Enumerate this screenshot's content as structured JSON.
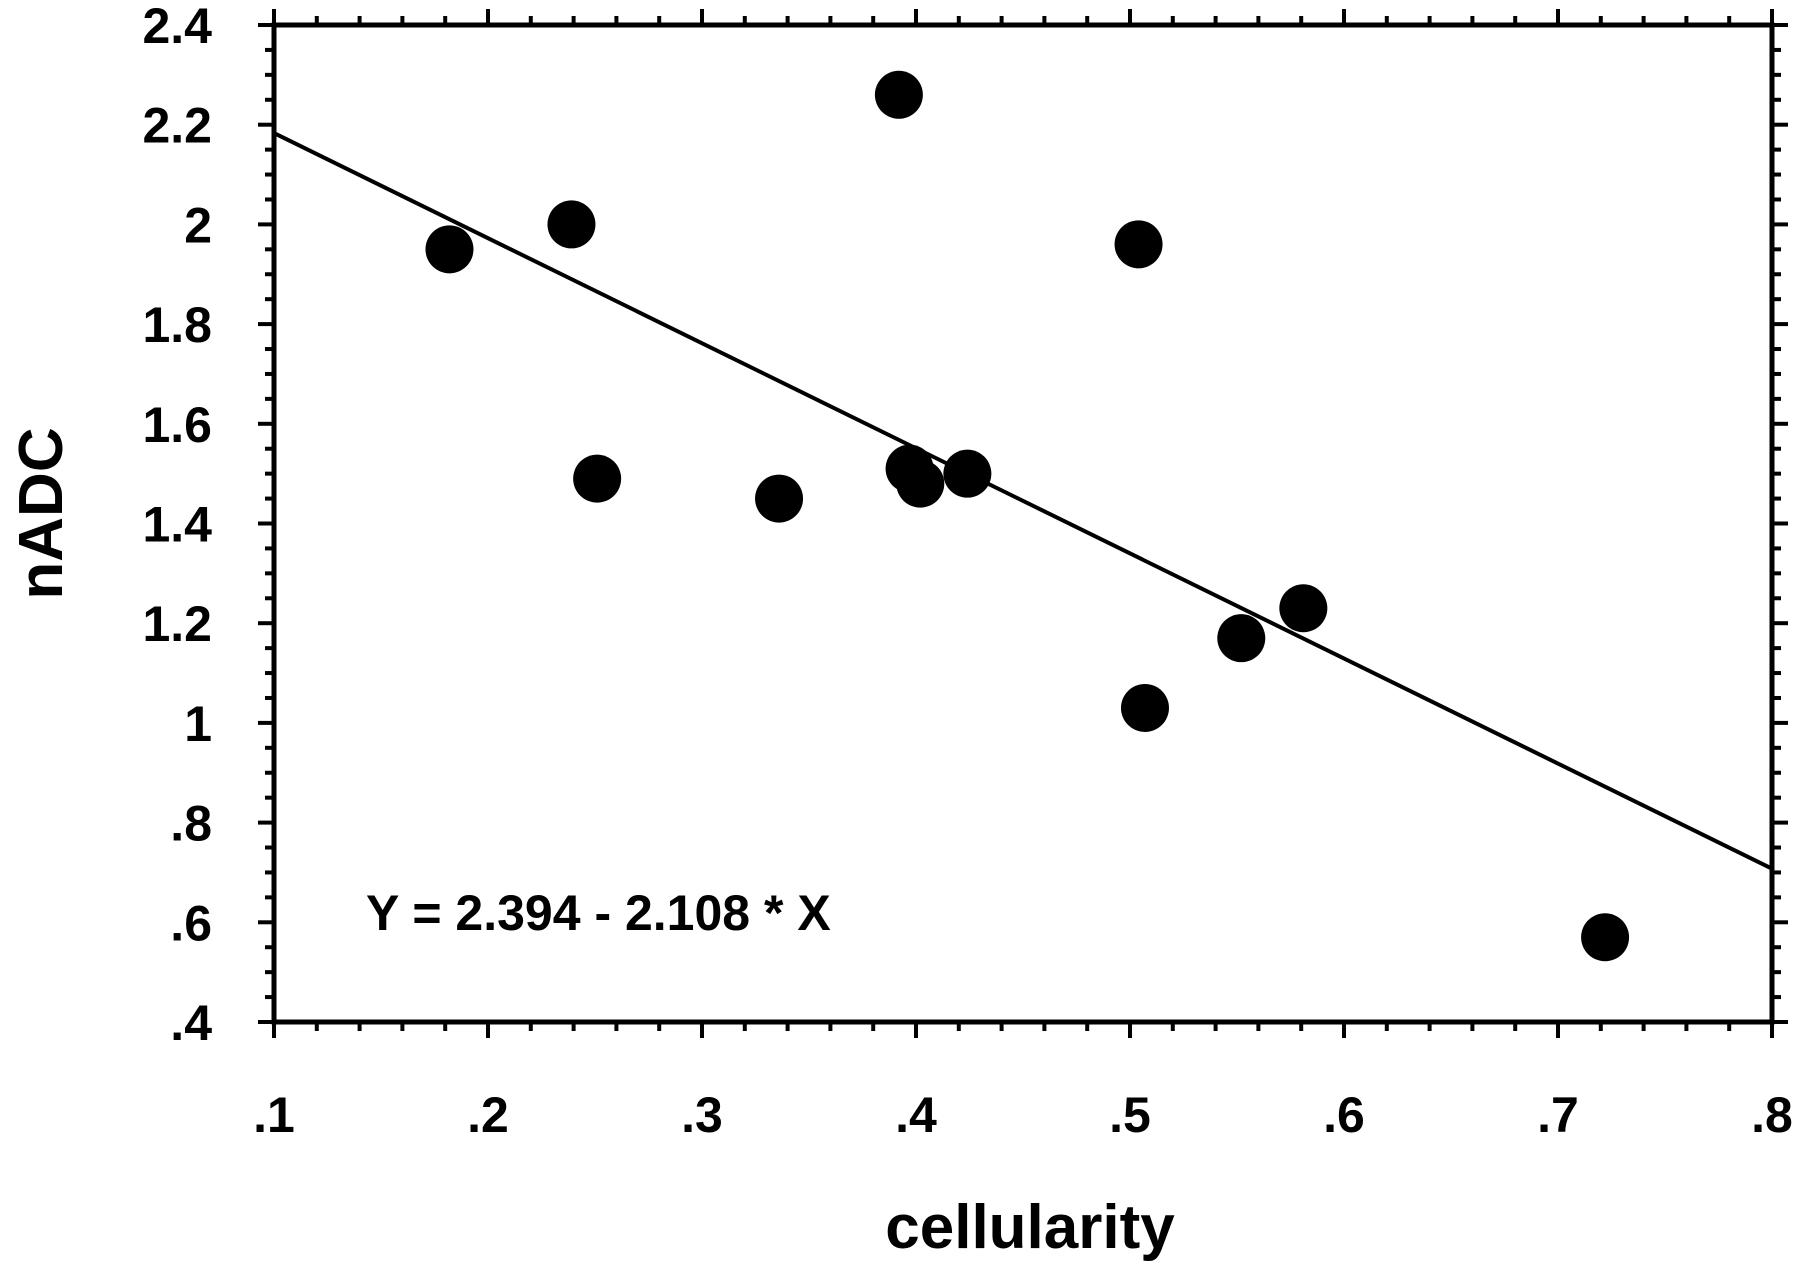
{
  "chart_data": {
    "type": "scatter",
    "title": "",
    "xlabel": "cellularity",
    "ylabel": "nADC",
    "xlim": [
      0.1,
      0.8
    ],
    "ylim": [
      0.4,
      2.4
    ],
    "x_ticks": [
      0.1,
      0.2,
      0.3,
      0.4,
      0.5,
      0.6,
      0.7,
      0.8
    ],
    "x_tick_labels": [
      ".1",
      ".2",
      ".3",
      ".4",
      ".5",
      ".6",
      ".7",
      ".8"
    ],
    "y_ticks": [
      0.4,
      0.6,
      0.8,
      1.0,
      1.2,
      1.4,
      1.6,
      1.8,
      2.0,
      2.2,
      2.4
    ],
    "y_tick_labels": [
      ".4",
      ".6",
      ".8",
      "1",
      "1.2",
      "1.4",
      "1.6",
      "1.8",
      "2",
      "2.2",
      "2.4"
    ],
    "grid": false,
    "points": [
      {
        "x": 0.182,
        "y": 1.95
      },
      {
        "x": 0.239,
        "y": 2.0
      },
      {
        "x": 0.251,
        "y": 1.49
      },
      {
        "x": 0.336,
        "y": 1.45
      },
      {
        "x": 0.392,
        "y": 2.26
      },
      {
        "x": 0.397,
        "y": 1.51
      },
      {
        "x": 0.402,
        "y": 1.48
      },
      {
        "x": 0.424,
        "y": 1.5
      },
      {
        "x": 0.504,
        "y": 1.96
      },
      {
        "x": 0.507,
        "y": 1.03
      },
      {
        "x": 0.552,
        "y": 1.17
      },
      {
        "x": 0.581,
        "y": 1.23
      },
      {
        "x": 0.722,
        "y": 0.57
      }
    ],
    "fit_line": {
      "intercept": 2.394,
      "slope": -2.108
    },
    "annotation": "Y = 2.394 - 2.108 * X"
  }
}
